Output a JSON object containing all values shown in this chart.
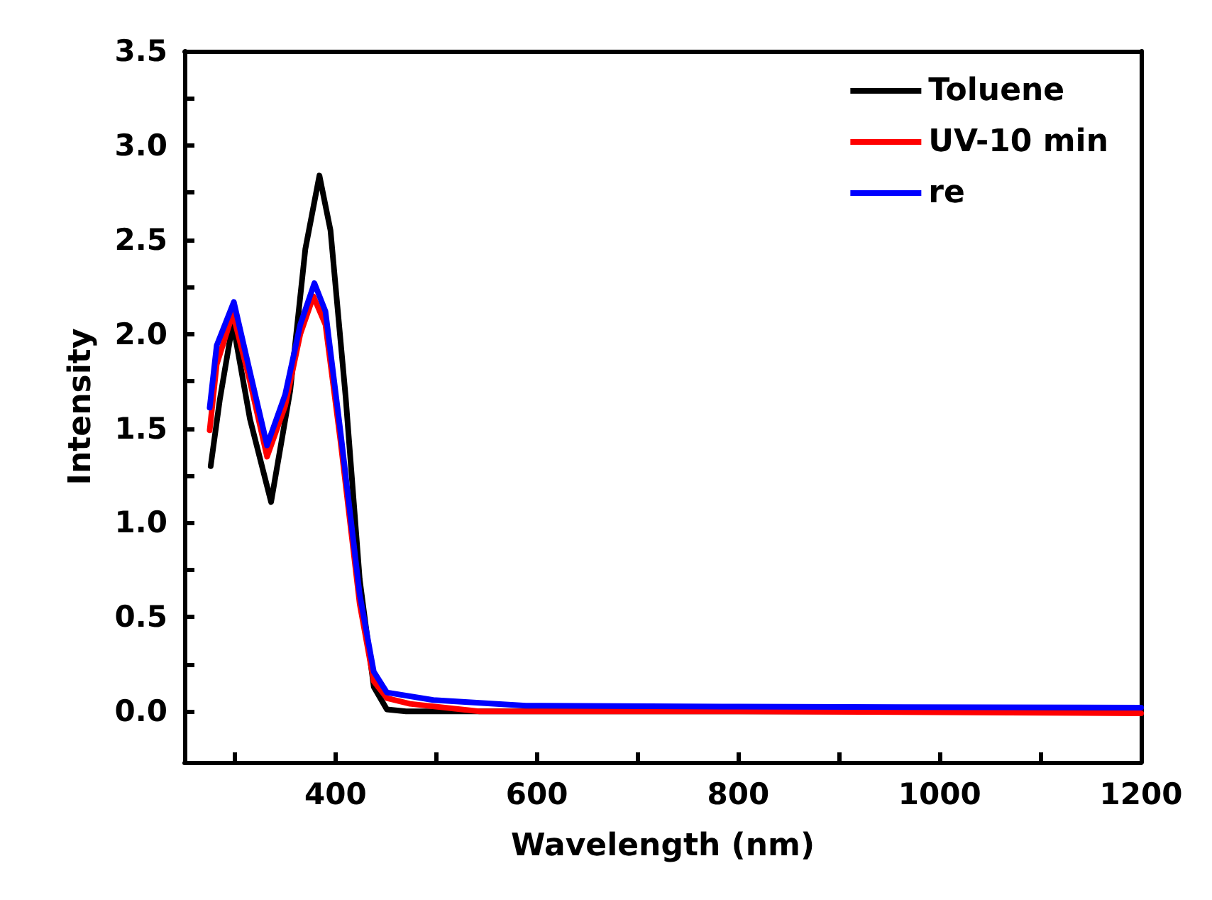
{
  "chart_data": {
    "type": "line",
    "xlabel": "Wavelength (nm)",
    "ylabel": "Intensity",
    "xlim": [
      250,
      1200
    ],
    "ylim": [
      -0.27,
      3.5
    ],
    "xticks": [
      {
        "value": 300,
        "label": null
      },
      400,
      {
        "value": 500,
        "label": null
      },
      600,
      {
        "value": 700,
        "label": null
      },
      800,
      {
        "value": 900,
        "label": null
      },
      1000,
      {
        "value": 1100,
        "label": null
      },
      1200
    ],
    "yticks": [
      {
        "value": 0,
        "label": "0.0"
      },
      {
        "value": 0.25,
        "label": null
      },
      0.5,
      {
        "value": 0.75,
        "label": null
      },
      {
        "value": 1,
        "label": "1.0"
      },
      {
        "value": 1.25,
        "label": null
      },
      1.5,
      {
        "value": 1.75,
        "label": null
      },
      {
        "value": 2,
        "label": "2.0"
      },
      {
        "value": 2.25,
        "label": null
      },
      2.5,
      {
        "value": 2.75,
        "label": null
      },
      {
        "value": 3,
        "label": "3.0"
      },
      {
        "value": 3.25,
        "label": null
      },
      3.5
    ],
    "grid": false,
    "legend": "top right",
    "marker": "none",
    "line_style": "solid",
    "series": [
      {
        "name": "Toluene",
        "color": "#000000",
        "x": [
          276,
          285,
          298,
          315,
          336,
          355,
          370,
          384,
          395,
          410,
          424,
          438,
          451,
          470,
          550,
          800,
          1200
        ],
        "values": [
          1.3,
          1.65,
          2.06,
          1.55,
          1.11,
          1.7,
          2.45,
          2.84,
          2.55,
          1.67,
          0.7,
          0.13,
          0.01,
          0.0,
          0.0,
          0.0,
          0.0
        ]
      },
      {
        "name": "UV-10 min",
        "color": "#ff0000",
        "x": [
          275,
          282,
          298,
          315,
          332,
          350,
          365,
          378,
          390,
          405,
          424,
          438,
          451,
          474,
          543,
          800,
          1200
        ],
        "values": [
          1.49,
          1.84,
          2.11,
          1.75,
          1.35,
          1.62,
          2.0,
          2.2,
          2.05,
          1.43,
          0.57,
          0.16,
          0.07,
          0.04,
          0.0,
          0.0,
          -0.01
        ]
      },
      {
        "name": "re",
        "color": "#0000ff",
        "x": [
          275,
          282,
          299,
          315,
          332,
          350,
          365,
          379,
          390,
          405,
          424,
          438,
          451,
          497,
          589,
          800,
          1200
        ],
        "values": [
          1.61,
          1.94,
          2.17,
          1.8,
          1.41,
          1.68,
          2.05,
          2.27,
          2.12,
          1.48,
          0.62,
          0.21,
          0.1,
          0.06,
          0.03,
          0.025,
          0.02
        ]
      }
    ]
  }
}
